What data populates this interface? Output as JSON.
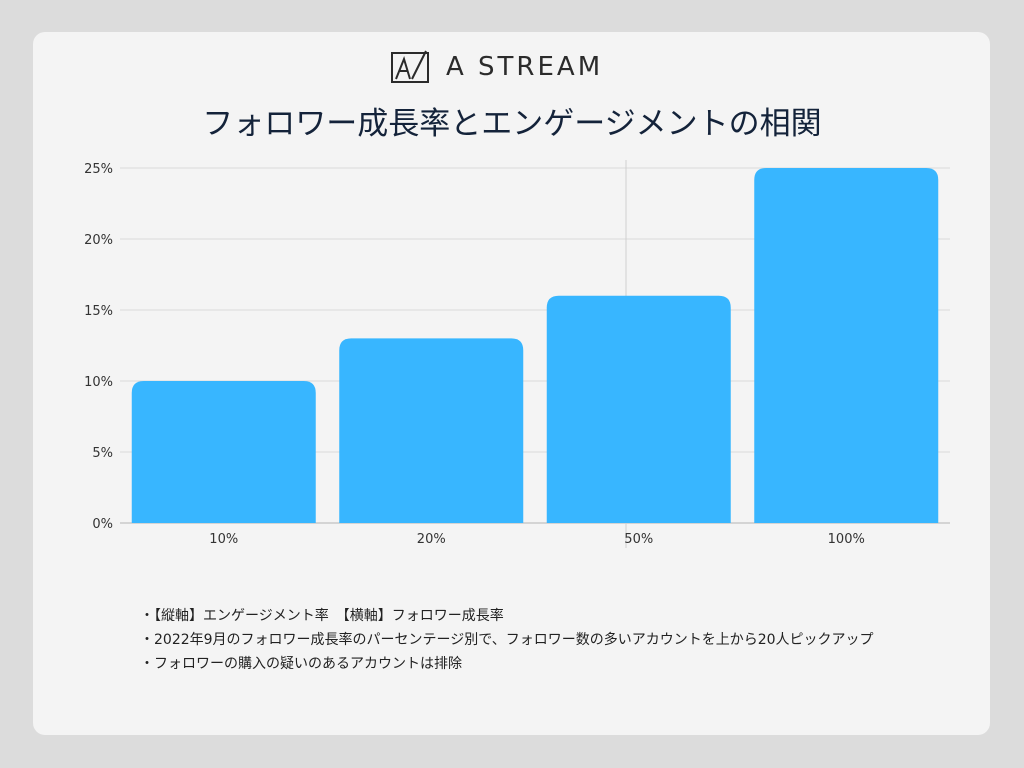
{
  "brand": {
    "name": "A STREAM",
    "icon": "brand-logo-icon"
  },
  "title": "フォロワー成長率とエンゲージメントの相関",
  "notes": [
    "・【縦軸】エンゲージメント率　【横軸】フォロワー成長率",
    "・2022年9月のフォロワー成長率のパーセンテージ別で、フォロワー数の多いアカウントを上から20人ピックアップ",
    "・フォロワーの購入の疑いのあるアカウントは排除"
  ],
  "chart_data": {
    "type": "bar",
    "categories": [
      "10%",
      "20%",
      "50%",
      "100%"
    ],
    "values": [
      10,
      13,
      16,
      25
    ],
    "y_ticks": [
      "0%",
      "5%",
      "10%",
      "15%",
      "20%",
      "25%"
    ],
    "ylim": [
      0,
      25
    ],
    "grid": true,
    "color": "#38b6ff"
  }
}
